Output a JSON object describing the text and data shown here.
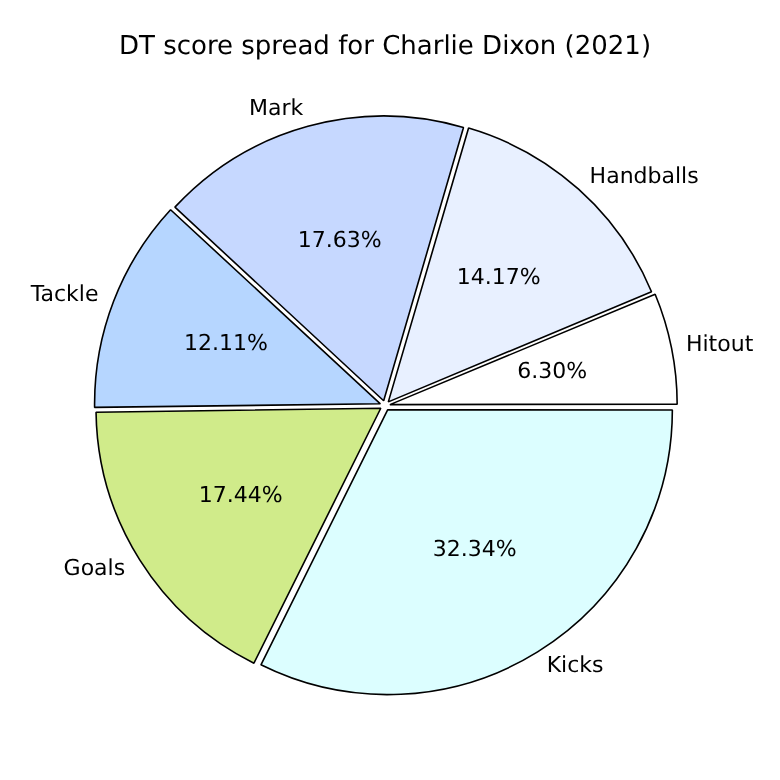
{
  "chart_data": {
    "type": "pie",
    "title": "DT score spread for Charlie Dixon (2021)",
    "categories": [
      "Kicks",
      "Goals",
      "Tackle",
      "Mark",
      "Handballs",
      "Hitout"
    ],
    "values": [
      32.34,
      17.44,
      12.11,
      17.63,
      14.17,
      6.3
    ],
    "value_labels": [
      "32.34%",
      "17.44%",
      "12.11%",
      "17.63%",
      "14.17%",
      "6.30%"
    ],
    "colors": [
      "#dcfeff",
      "#d0eb8a",
      "#b6d6ff",
      "#c6d8ff",
      "#e8f0ff",
      "#ffffff"
    ],
    "legend": false
  }
}
